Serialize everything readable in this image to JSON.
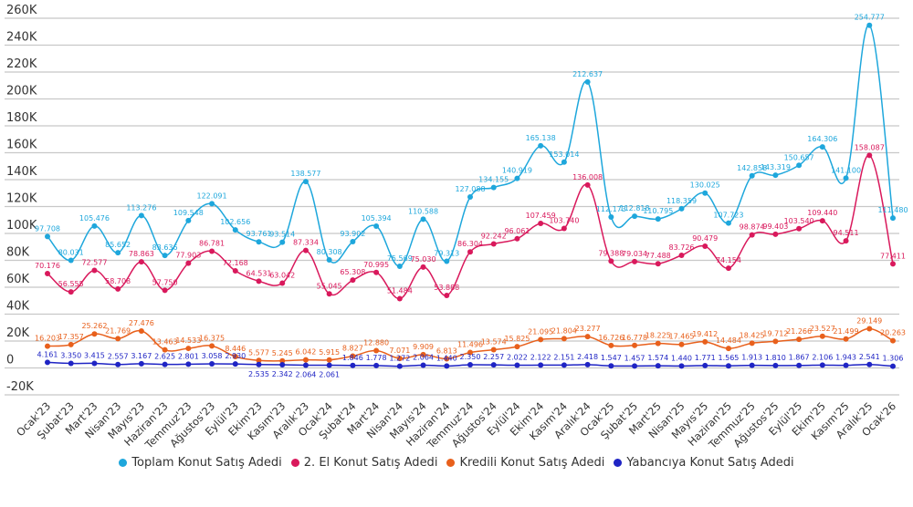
{
  "chart_data": {
    "type": "line",
    "title": "",
    "xlabel": "",
    "ylabel": "",
    "ylim": [
      -20000,
      260000
    ],
    "yticks": [
      "-20K",
      "0",
      "20K",
      "40K",
      "60K",
      "80K",
      "100K",
      "120K",
      "140K",
      "160K",
      "180K",
      "200K",
      "220K",
      "240K",
      "260K"
    ],
    "ytick_values": [
      -20000,
      0,
      20000,
      40000,
      60000,
      80000,
      100000,
      120000,
      140000,
      160000,
      180000,
      200000,
      220000,
      240000,
      260000
    ],
    "grid": true,
    "legend_position": "bottom",
    "categories": [
      "Ocak'23",
      "Şubat'23",
      "Mart'23",
      "Nisan'23",
      "Mayıs'23",
      "Haziran'23",
      "Temmuz'23",
      "Ağustos'23",
      "Eylül'23",
      "Ekim'23",
      "Kasım'23",
      "Aralık'23",
      "Ocak'24",
      "Şubat'24",
      "Mart'24",
      "Nisan'24",
      "Mayıs'24",
      "Haziran'24",
      "Temmuz'24",
      "Ağustos'24",
      "Eylül'24",
      "Ekim'24",
      "Kasım'24",
      "Aralık'24",
      "Ocak'25",
      "Şubat'25",
      "Mart'25",
      "Nisan'25",
      "Mayıs'25",
      "Haziran'25",
      "Temmuz'25",
      "Ağustos'25",
      "Eylül'25",
      "Ekim'25",
      "Kasım'25",
      "Aralık'25",
      "Ocak'26"
    ],
    "series": [
      {
        "name": "Toplam Konut Satış Adedi",
        "color": "#1ea7dc",
        "values": [
          97708,
          80031,
          105476,
          85652,
          113276,
          83636,
          109548,
          122091,
          102656,
          93761,
          93514,
          138577,
          80308,
          93902,
          105394,
          75569,
          110588,
          79313,
          127088,
          134155,
          140919,
          165138,
          153014,
          212637,
          112173,
          112818,
          110795,
          118359,
          130025,
          107723,
          142858,
          143319,
          150657,
          164306,
          141100,
          254777,
          111480
        ],
        "labels": [
          "97.708",
          "80.031",
          "105.476",
          "85.652",
          "113.276",
          "83.636",
          "109.548",
          "122.091",
          "102.656",
          "93.761",
          "93.514",
          "138.577",
          "80.308",
          "93.902",
          "105.394",
          "75.569",
          "110.588",
          "79.313",
          "127.088",
          "134.155",
          "140.919",
          "165.138",
          "153.014",
          "212.637",
          "112.173",
          "112.818",
          "110.795",
          "118.359",
          "130.025",
          "107.723",
          "142.858",
          "143.319",
          "150.657",
          "164.306",
          "141.100",
          "254.777",
          "111.480"
        ]
      },
      {
        "name": "2. El Konut Satış Adedi",
        "color": "#d9195c",
        "values": [
          70176,
          56555,
          72577,
          58708,
          78863,
          57750,
          77903,
          86781,
          72168,
          64531,
          63042,
          87334,
          55045,
          65308,
          70995,
          51484,
          75030,
          53888,
          86304,
          92242,
          96061,
          107459,
          103740,
          136008,
          79388,
          79034,
          77488,
          83726,
          90479,
          74154,
          98874,
          99403,
          103540,
          109440,
          94511,
          158087,
          77411
        ],
        "labels": [
          "70.176",
          "56.555",
          "72.577",
          "58.708",
          "78.863",
          "57.750",
          "77.903",
          "86.781",
          "72.168",
          "64.531",
          "63.042",
          "87.334",
          "55.045",
          "65.308",
          "70.995",
          "51.484",
          "75.030",
          "53.888",
          "86.304",
          "92.242",
          "96.061",
          "107.459",
          "103.740",
          "136.008",
          "79.388",
          "79.034",
          "77.488",
          "83.726",
          "90.479",
          "74.154",
          "98.874",
          "99.403",
          "103.540",
          "109.440",
          "94.511",
          "158.087",
          "77.411"
        ]
      },
      {
        "name": "Kredili Konut Satış Adedi",
        "color": "#e8601c",
        "values": [
          16203,
          17357,
          25262,
          21769,
          27476,
          13463,
          14533,
          16375,
          8446,
          5577,
          5245,
          6042,
          5915,
          8827,
          12880,
          7071,
          9909,
          6813,
          11496,
          13574,
          15825,
          21095,
          21804,
          23277,
          16726,
          16778,
          18225,
          17465,
          19412,
          14484,
          18425,
          19712,
          21266,
          23527,
          21499,
          29149,
          20263
        ],
        "labels": [
          "16.203",
          "17.357",
          "25.262",
          "21.769",
          "27.476",
          "13.463",
          "14.533",
          "16.375",
          "8.446",
          "5.577",
          "5.245",
          "6.042",
          "5.915",
          "8.827",
          "12.880",
          "7.071",
          "9.909",
          "6.813",
          "11.496",
          "13.574",
          "15.825",
          "21.095",
          "21.804",
          "23.277",
          "16.726",
          "16.778",
          "18.225",
          "17.465",
          "19.412",
          "14.484",
          "18.425",
          "19.712",
          "21.266",
          "23.527",
          "21.499",
          "29.149",
          "20.263"
        ]
      },
      {
        "name": "Yabancıya Konut Satış Adedi",
        "color": "#1f24c4",
        "values": [
          4161,
          3350,
          3415,
          2557,
          3167,
          2625,
          2801,
          3058,
          2930,
          2535,
          2342,
          2064,
          2061,
          1846,
          1778,
          1272,
          2064,
          1440,
          2350,
          2257,
          2022,
          2122,
          2151,
          2418,
          1547,
          1457,
          1574,
          1440,
          1771,
          1565,
          1913,
          1810,
          1867,
          2106,
          1943,
          2541,
          1306
        ],
        "labels": [
          "4.161",
          "3.350",
          "3.415",
          "2.557",
          "3.167",
          "2.625",
          "2.801",
          "3.058",
          "2.930",
          "2.535",
          "2.342",
          "2.064",
          "2.061",
          "1.846",
          "1.778",
          "1.272",
          "2.064",
          "1.440",
          "2.350",
          "2.257",
          "2.022",
          "2.122",
          "2.151",
          "2.418",
          "1.547",
          "1.457",
          "1.574",
          "1.440",
          "1.771",
          "1.565",
          "1.913",
          "1.810",
          "1.867",
          "2.106",
          "1.943",
          "2.541",
          "1.306"
        ]
      }
    ]
  }
}
